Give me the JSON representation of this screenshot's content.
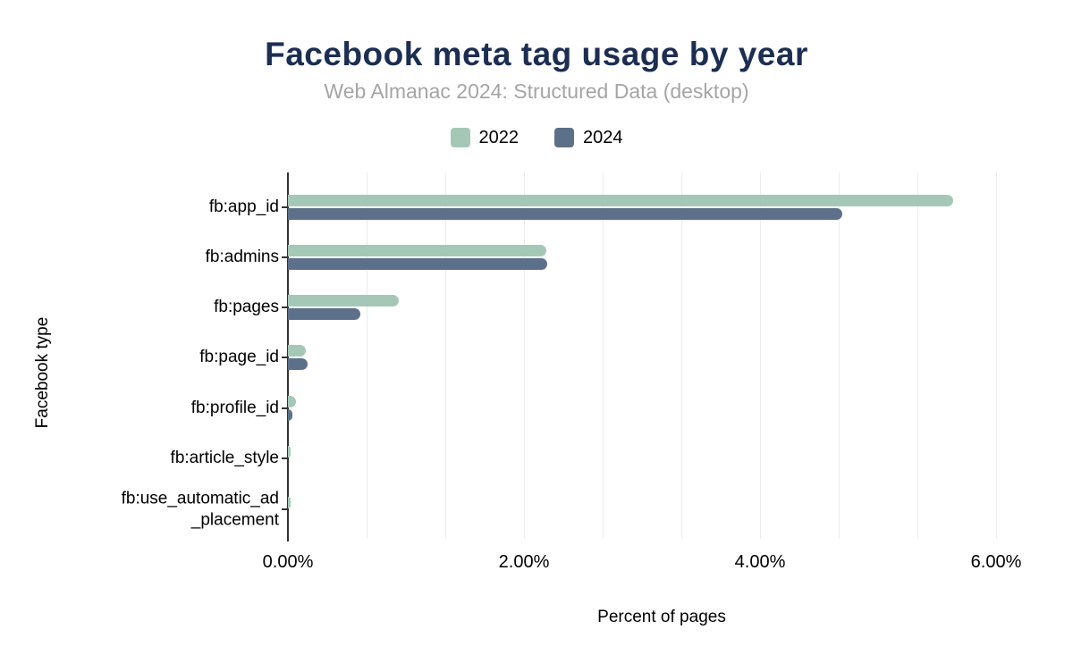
{
  "header": {
    "title": "Facebook meta tag usage by year",
    "subtitle": "Web Almanac 2024: Structured Data (desktop)",
    "title_color": "#1c2e52",
    "subtitle_color": "#a5a5a5"
  },
  "chart_data": {
    "type": "bar",
    "orientation": "horizontal",
    "title": "Facebook meta tag usage by year",
    "subtitle": "Web Almanac 2024: Structured Data (desktop)",
    "xlabel": "Percent of pages",
    "ylabel": "Facebook type",
    "xlim": [
      0,
      6.33
    ],
    "grid": true,
    "legend_position": "top",
    "categories": [
      "fb:app_id",
      "fb:admins",
      "fb:pages",
      "fb:page_id",
      "fb:profile_id",
      "fb:article_style",
      "fb:use_automatic_ad_placement"
    ],
    "category_label_lines": [
      [
        "fb:app_id"
      ],
      [
        "fb:admins"
      ],
      [
        "fb:pages"
      ],
      [
        "fb:page_id"
      ],
      [
        "fb:profile_id"
      ],
      [
        "fb:article_style"
      ],
      [
        "fb:use_automatic_ad",
        "_placement"
      ]
    ],
    "series": [
      {
        "name": "2022",
        "color": "#a5c8b6",
        "values": [
          5.64,
          2.19,
          0.94,
          0.15,
          0.07,
          0.02,
          0.02
        ]
      },
      {
        "name": "2024",
        "color": "#5d7089",
        "values": [
          4.7,
          2.2,
          0.61,
          0.17,
          0.04,
          0.0,
          0.0
        ]
      }
    ],
    "x_ticks": [
      {
        "value": 0,
        "label": "0.00%"
      },
      {
        "value": 2,
        "label": "2.00%"
      },
      {
        "value": 4,
        "label": "4.00%"
      },
      {
        "value": 6,
        "label": "6.00%"
      }
    ],
    "gridline_values": [
      0.6667,
      1.3333,
      2,
      2.6667,
      3.3333,
      4,
      4.6667,
      5.3333,
      6
    ],
    "colors": {
      "axis_line": "#333333",
      "gridline": "#ececec",
      "tick_text": "#000000"
    }
  }
}
